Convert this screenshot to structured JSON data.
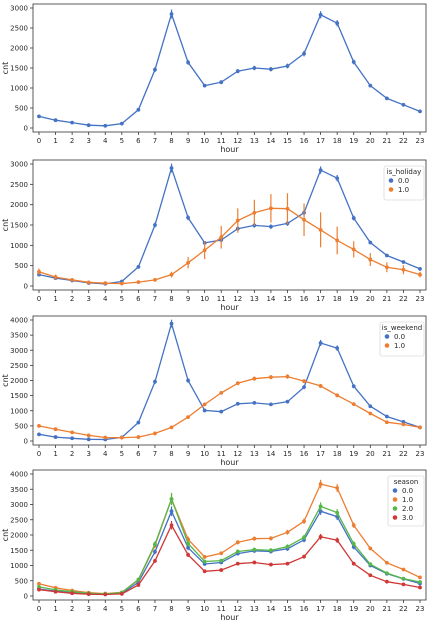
{
  "chart_data": [
    {
      "type": "line",
      "xlabel": "hour",
      "ylabel": "cnt",
      "ylim": [
        0,
        3000
      ],
      "yticks": [
        0,
        500,
        1000,
        1500,
        2000,
        2500,
        3000
      ],
      "x": [
        0,
        1,
        2,
        3,
        4,
        5,
        6,
        7,
        8,
        9,
        10,
        11,
        12,
        13,
        14,
        15,
        16,
        17,
        18,
        19,
        20,
        21,
        22,
        23
      ],
      "grid": false,
      "legend": null,
      "series": [
        {
          "color": "#4472c4",
          "values": [
            290,
            195,
            135,
            70,
            55,
            110,
            455,
            1460,
            2850,
            1640,
            1060,
            1145,
            1420,
            1500,
            1470,
            1550,
            1860,
            2830,
            2620,
            1650,
            1060,
            740,
            580,
            415
          ],
          "errors": [
            20,
            15,
            12,
            8,
            6,
            10,
            30,
            60,
            110,
            60,
            40,
            45,
            50,
            55,
            55,
            60,
            70,
            90,
            80,
            60,
            40,
            30,
            25,
            20
          ]
        }
      ]
    },
    {
      "type": "line",
      "xlabel": "hour",
      "ylabel": "cnt",
      "ylim": [
        0,
        3000
      ],
      "yticks": [
        0,
        500,
        1000,
        1500,
        2000,
        2500,
        3000
      ],
      "x": [
        0,
        1,
        2,
        3,
        4,
        5,
        6,
        7,
        8,
        9,
        10,
        11,
        12,
        13,
        14,
        15,
        16,
        17,
        18,
        19,
        20,
        21,
        22,
        23
      ],
      "grid": false,
      "legend": {
        "title": "is_holiday",
        "position": "top-right"
      },
      "series": [
        {
          "name": "0.0",
          "color": "#4472c4",
          "values": [
            280,
            195,
            135,
            75,
            55,
            110,
            470,
            1500,
            2900,
            1680,
            1060,
            1130,
            1410,
            1490,
            1460,
            1540,
            1800,
            2850,
            2650,
            1670,
            1070,
            750,
            590,
            420
          ],
          "errors": [
            20,
            15,
            12,
            8,
            6,
            10,
            30,
            60,
            110,
            60,
            40,
            45,
            50,
            55,
            55,
            60,
            70,
            90,
            80,
            60,
            40,
            30,
            25,
            20
          ]
        },
        {
          "name": "1.0",
          "color": "#ed7d31",
          "values": [
            350,
            220,
            150,
            90,
            70,
            60,
            95,
            150,
            280,
            570,
            880,
            1200,
            1610,
            1800,
            1910,
            1900,
            1630,
            1380,
            1120,
            900,
            650,
            460,
            400,
            280
          ],
          "errors": [
            80,
            60,
            40,
            30,
            20,
            20,
            30,
            40,
            70,
            140,
            220,
            280,
            300,
            320,
            350,
            380,
            400,
            430,
            340,
            200,
            160,
            120,
            110,
            70
          ]
        }
      ]
    },
    {
      "type": "line",
      "xlabel": "hour",
      "ylabel": "cnt",
      "ylim": [
        0,
        4000
      ],
      "yticks": [
        0,
        500,
        1000,
        1500,
        2000,
        2500,
        3000,
        3500,
        4000
      ],
      "x": [
        0,
        1,
        2,
        3,
        4,
        5,
        6,
        7,
        8,
        9,
        10,
        11,
        12,
        13,
        14,
        15,
        16,
        17,
        18,
        19,
        20,
        21,
        22,
        23
      ],
      "grid": false,
      "legend": {
        "title": "is_weekend",
        "position": "top-right"
      },
      "series": [
        {
          "name": "0.0",
          "color": "#4472c4",
          "values": [
            220,
            130,
            90,
            55,
            50,
            120,
            610,
            1960,
            3880,
            2000,
            1010,
            970,
            1230,
            1260,
            1210,
            1300,
            1780,
            3240,
            3070,
            1810,
            1150,
            810,
            630,
            450
          ],
          "errors": [
            20,
            15,
            12,
            8,
            6,
            10,
            35,
            70,
            130,
            70,
            40,
            40,
            45,
            50,
            50,
            55,
            65,
            100,
            90,
            65,
            40,
            30,
            25,
            20
          ]
        },
        {
          "name": "1.0",
          "color": "#ed7d31",
          "values": [
            500,
            390,
            285,
            185,
            115,
            110,
            130,
            250,
            450,
            790,
            1210,
            1590,
            1910,
            2060,
            2110,
            2130,
            1980,
            1820,
            1510,
            1220,
            910,
            620,
            550,
            450
          ],
          "errors": [
            30,
            25,
            20,
            15,
            10,
            10,
            12,
            18,
            25,
            35,
            45,
            55,
            65,
            70,
            70,
            75,
            70,
            65,
            60,
            50,
            40,
            30,
            28,
            25
          ]
        }
      ]
    },
    {
      "type": "line",
      "xlabel": "hour",
      "ylabel": "cnt",
      "ylim": [
        0,
        4000
      ],
      "yticks": [
        0,
        500,
        1000,
        1500,
        2000,
        2500,
        3000,
        3500,
        4000
      ],
      "x": [
        0,
        1,
        2,
        3,
        4,
        5,
        6,
        7,
        8,
        9,
        10,
        11,
        12,
        13,
        14,
        15,
        16,
        17,
        18,
        19,
        20,
        21,
        22,
        23
      ],
      "grid": false,
      "legend": {
        "title": "season",
        "position": "top-right"
      },
      "series": [
        {
          "name": "0.0",
          "color": "#4472c4",
          "values": [
            230,
            160,
            110,
            70,
            60,
            90,
            450,
            1450,
            2780,
            1580,
            1050,
            1100,
            1390,
            1480,
            1460,
            1550,
            1840,
            2780,
            2600,
            1610,
            1000,
            730,
            560,
            410
          ],
          "errors": [
            20,
            15,
            12,
            8,
            6,
            10,
            35,
            80,
            160,
            80,
            50,
            50,
            60,
            60,
            60,
            70,
            80,
            120,
            110,
            80,
            50,
            40,
            30,
            25
          ]
        },
        {
          "name": "1.0",
          "color": "#ed7d31",
          "values": [
            400,
            270,
            180,
            110,
            80,
            120,
            530,
            1660,
            3180,
            1860,
            1280,
            1400,
            1760,
            1880,
            1890,
            2090,
            2450,
            3670,
            3540,
            2320,
            1560,
            1090,
            870,
            610
          ],
          "errors": [
            25,
            20,
            15,
            10,
            8,
            12,
            40,
            90,
            180,
            90,
            60,
            60,
            70,
            70,
            70,
            80,
            90,
            140,
            130,
            90,
            60,
            45,
            35,
            30
          ]
        },
        {
          "name": "2.0",
          "color": "#55b848",
          "values": [
            300,
            200,
            140,
            90,
            70,
            110,
            540,
            1700,
            3180,
            1720,
            1130,
            1160,
            1460,
            1520,
            1500,
            1620,
            1920,
            2940,
            2730,
            1710,
            1040,
            750,
            570,
            460
          ],
          "errors": [
            22,
            18,
            14,
            10,
            8,
            12,
            40,
            90,
            200,
            90,
            55,
            55,
            65,
            65,
            65,
            75,
            85,
            130,
            120,
            85,
            55,
            40,
            32,
            26
          ]
        },
        {
          "name": "3.0",
          "color": "#d03737",
          "values": [
            210,
            140,
            90,
            60,
            50,
            70,
            360,
            1150,
            2320,
            1350,
            810,
            850,
            1060,
            1100,
            1030,
            1060,
            1290,
            1940,
            1830,
            1060,
            680,
            470,
            380,
            280
          ],
          "errors": [
            18,
            14,
            10,
            8,
            6,
            8,
            30,
            70,
            140,
            70,
            45,
            45,
            50,
            50,
            50,
            55,
            65,
            95,
            90,
            60,
            40,
            30,
            25,
            20
          ]
        }
      ]
    }
  ]
}
